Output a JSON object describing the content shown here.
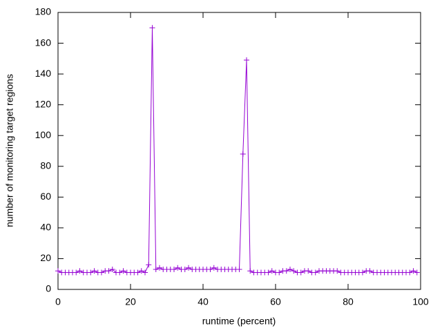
{
  "chart_data": {
    "type": "line",
    "xlabel": "runtime (percent)",
    "ylabel": "number of monitoring target regions",
    "color": "#9400d3",
    "x": [
      0,
      1,
      2,
      3,
      4,
      5,
      6,
      7,
      8,
      9,
      10,
      11,
      12,
      13,
      14,
      15,
      16,
      17,
      18,
      19,
      20,
      21,
      22,
      23,
      24,
      25,
      26,
      27,
      28,
      29,
      30,
      31,
      32,
      33,
      34,
      35,
      36,
      37,
      38,
      39,
      40,
      41,
      42,
      43,
      44,
      45,
      46,
      47,
      48,
      49,
      50,
      51,
      52,
      53,
      54,
      55,
      56,
      57,
      58,
      59,
      60,
      61,
      62,
      63,
      64,
      65,
      66,
      67,
      68,
      69,
      70,
      71,
      72,
      73,
      74,
      75,
      76,
      77,
      78,
      79,
      80,
      81,
      82,
      83,
      84,
      85,
      86,
      87,
      88,
      89,
      90,
      91,
      92,
      93,
      94,
      95,
      96,
      97,
      98,
      99
    ],
    "values": [
      12,
      11,
      11,
      11,
      11,
      11,
      12,
      11,
      11,
      11,
      12,
      11,
      11,
      12,
      12,
      13,
      11,
      11,
      12,
      11,
      11,
      11,
      11,
      12,
      11,
      16,
      170,
      13,
      14,
      13,
      13,
      13,
      13,
      14,
      13,
      13,
      14,
      13,
      13,
      13,
      13,
      13,
      13,
      14,
      13,
      13,
      13,
      13,
      13,
      13,
      13,
      88,
      149,
      12,
      11,
      11,
      11,
      11,
      11,
      12,
      11,
      11,
      12,
      12,
      13,
      12,
      11,
      11,
      12,
      12,
      11,
      11,
      12,
      12,
      12,
      12,
      12,
      12,
      11,
      11,
      11,
      11,
      11,
      11,
      11,
      12,
      12,
      11,
      11,
      11,
      11,
      11,
      11,
      11,
      11,
      11,
      11,
      11,
      12,
      11
    ],
    "xlim": [
      0,
      100
    ],
    "xticks": [
      0,
      20,
      40,
      60,
      80,
      100
    ],
    "ylim": [
      0,
      180
    ],
    "yticks": [
      0,
      20,
      40,
      60,
      80,
      100,
      120,
      140,
      160,
      180
    ]
  }
}
